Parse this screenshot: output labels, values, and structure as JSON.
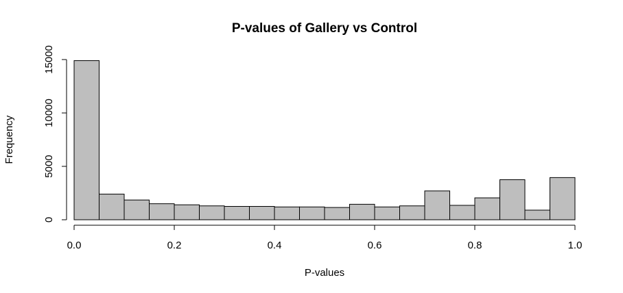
{
  "chart_data": {
    "type": "bar",
    "title": "P-values of Gallery vs Control",
    "xlabel": "P-values",
    "ylabel": "Frequency",
    "xlim": [
      0,
      1
    ],
    "ylim": [
      0,
      15000
    ],
    "grid": false,
    "bin_width": 0.05,
    "bins": [
      {
        "x0": 0.0,
        "x1": 0.05,
        "value": 14900
      },
      {
        "x0": 0.05,
        "x1": 0.1,
        "value": 2400
      },
      {
        "x0": 0.1,
        "x1": 0.15,
        "value": 1850
      },
      {
        "x0": 0.15,
        "x1": 0.2,
        "value": 1500
      },
      {
        "x0": 0.2,
        "x1": 0.25,
        "value": 1400
      },
      {
        "x0": 0.25,
        "x1": 0.3,
        "value": 1300
      },
      {
        "x0": 0.3,
        "x1": 0.35,
        "value": 1250
      },
      {
        "x0": 0.35,
        "x1": 0.4,
        "value": 1250
      },
      {
        "x0": 0.4,
        "x1": 0.45,
        "value": 1200
      },
      {
        "x0": 0.45,
        "x1": 0.5,
        "value": 1200
      },
      {
        "x0": 0.5,
        "x1": 0.55,
        "value": 1150
      },
      {
        "x0": 0.55,
        "x1": 0.6,
        "value": 1450
      },
      {
        "x0": 0.6,
        "x1": 0.65,
        "value": 1200
      },
      {
        "x0": 0.65,
        "x1": 0.7,
        "value": 1300
      },
      {
        "x0": 0.7,
        "x1": 0.75,
        "value": 2700
      },
      {
        "x0": 0.75,
        "x1": 0.8,
        "value": 1350
      },
      {
        "x0": 0.8,
        "x1": 0.85,
        "value": 2050
      },
      {
        "x0": 0.85,
        "x1": 0.9,
        "value": 3750
      },
      {
        "x0": 0.9,
        "x1": 0.95,
        "value": 900
      },
      {
        "x0": 0.95,
        "x1": 1.0,
        "value": 3950
      }
    ],
    "x_ticks": [
      0,
      0.2,
      0.4,
      0.6,
      0.8,
      1
    ],
    "x_tick_labels": [
      "0.0",
      "0.2",
      "0.4",
      "0.6",
      "0.8",
      "1.0"
    ],
    "y_ticks": [
      0,
      5000,
      10000,
      15000
    ],
    "y_tick_labels": [
      "0",
      "5000",
      "10000",
      "15000"
    ]
  }
}
